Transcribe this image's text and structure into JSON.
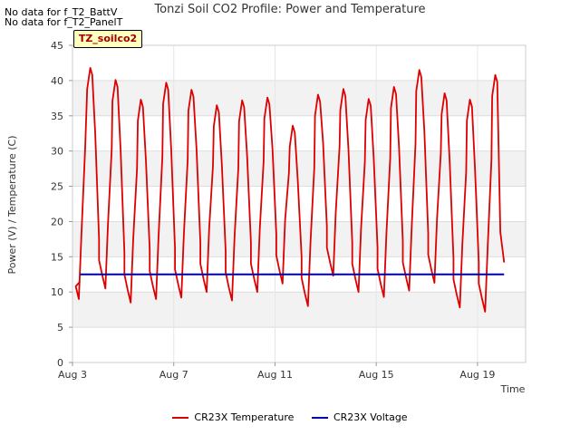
{
  "nodata": [
    "No data for f_T2_BattV",
    "No data for f_T2_PanelT"
  ],
  "site_label": "TZ_soilco2",
  "chart_data": {
    "type": "line",
    "title": "Tonzi Soil CO2 Profile: Power and Temperature",
    "xlabel": "Time",
    "ylabel": "Power (V) / Temperature (C)",
    "ylim": [
      0,
      45
    ],
    "yticks": [
      0,
      5,
      10,
      15,
      20,
      25,
      30,
      35,
      40,
      45
    ],
    "xlim": [
      "Aug 3",
      "Aug 20.9"
    ],
    "xticks": [
      {
        "value": 3,
        "label": "Aug 3"
      },
      {
        "value": 7,
        "label": "Aug 7"
      },
      {
        "value": 11,
        "label": "Aug 11"
      },
      {
        "value": 15,
        "label": "Aug 15"
      },
      {
        "value": 19,
        "label": "Aug 19"
      }
    ],
    "x_units": "day of August",
    "grid": true,
    "legend_position": "bottom",
    "series": [
      {
        "name": "CR23X Temperature",
        "color": "#dd0000",
        "daily_min": [
          {
            "x": 3.25,
            "y": 9.0
          },
          {
            "x": 4.3,
            "y": 10.5
          },
          {
            "x": 5.3,
            "y": 8.5
          },
          {
            "x": 6.3,
            "y": 9.0
          },
          {
            "x": 7.3,
            "y": 9.2
          },
          {
            "x": 8.3,
            "y": 10.0
          },
          {
            "x": 9.3,
            "y": 8.8
          },
          {
            "x": 10.3,
            "y": 10.0
          },
          {
            "x": 11.3,
            "y": 11.2
          },
          {
            "x": 12.3,
            "y": 8.0
          },
          {
            "x": 13.3,
            "y": 12.3
          },
          {
            "x": 14.3,
            "y": 10.0
          },
          {
            "x": 15.3,
            "y": 9.3
          },
          {
            "x": 16.3,
            "y": 10.2
          },
          {
            "x": 17.3,
            "y": 11.3
          },
          {
            "x": 18.3,
            "y": 7.8
          },
          {
            "x": 19.3,
            "y": 7.2
          }
        ],
        "daily_max": [
          {
            "x": 3.7,
            "y": 41.8
          },
          {
            "x": 4.7,
            "y": 40.1
          },
          {
            "x": 5.7,
            "y": 37.3
          },
          {
            "x": 6.7,
            "y": 39.7
          },
          {
            "x": 7.7,
            "y": 38.7
          },
          {
            "x": 8.7,
            "y": 36.5
          },
          {
            "x": 9.7,
            "y": 37.2
          },
          {
            "x": 10.7,
            "y": 37.6
          },
          {
            "x": 11.7,
            "y": 33.6
          },
          {
            "x": 12.7,
            "y": 38.0
          },
          {
            "x": 13.7,
            "y": 38.8
          },
          {
            "x": 14.7,
            "y": 37.4
          },
          {
            "x": 15.7,
            "y": 39.1
          },
          {
            "x": 16.7,
            "y": 41.5
          },
          {
            "x": 17.7,
            "y": 38.2
          },
          {
            "x": 18.7,
            "y": 37.3
          },
          {
            "x": 19.7,
            "y": 40.8
          }
        ],
        "end": {
          "x": 20.05,
          "y": 14.2
        }
      },
      {
        "name": "CR23X Voltage",
        "color": "#0000aa",
        "x": [
          3.3,
          20.05
        ],
        "y": [
          12.5,
          12.5
        ]
      }
    ]
  }
}
